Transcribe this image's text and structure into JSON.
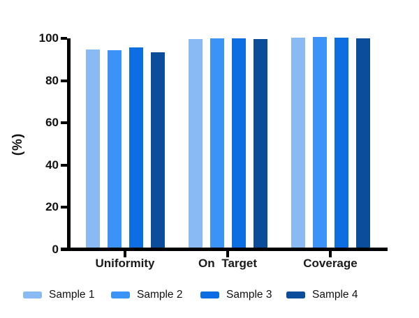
{
  "chart_data": {
    "type": "bar",
    "title": "",
    "xlabel": "",
    "ylabel": "(%)",
    "ylim": [
      0,
      100
    ],
    "yticks": [
      0,
      20,
      40,
      60,
      80,
      100
    ],
    "grid": false,
    "legend_position": "bottom",
    "axis_color": "#000000",
    "categories": [
      "Uniformity",
      "On Target",
      "Coverage"
    ],
    "series": [
      {
        "name": "Sample 1",
        "color": "#8ABAF3",
        "values": [
          94.0,
          99.0,
          99.4
        ]
      },
      {
        "name": "Sample 2",
        "color": "#3B93F8",
        "values": [
          93.5,
          99.2,
          99.7
        ]
      },
      {
        "name": "Sample 3",
        "color": "#0C6EE2",
        "values": [
          94.8,
          99.2,
          99.5
        ]
      },
      {
        "name": "Sample 4",
        "color": "#0B4C9B",
        "values": [
          92.6,
          98.7,
          99.3
        ]
      }
    ]
  }
}
